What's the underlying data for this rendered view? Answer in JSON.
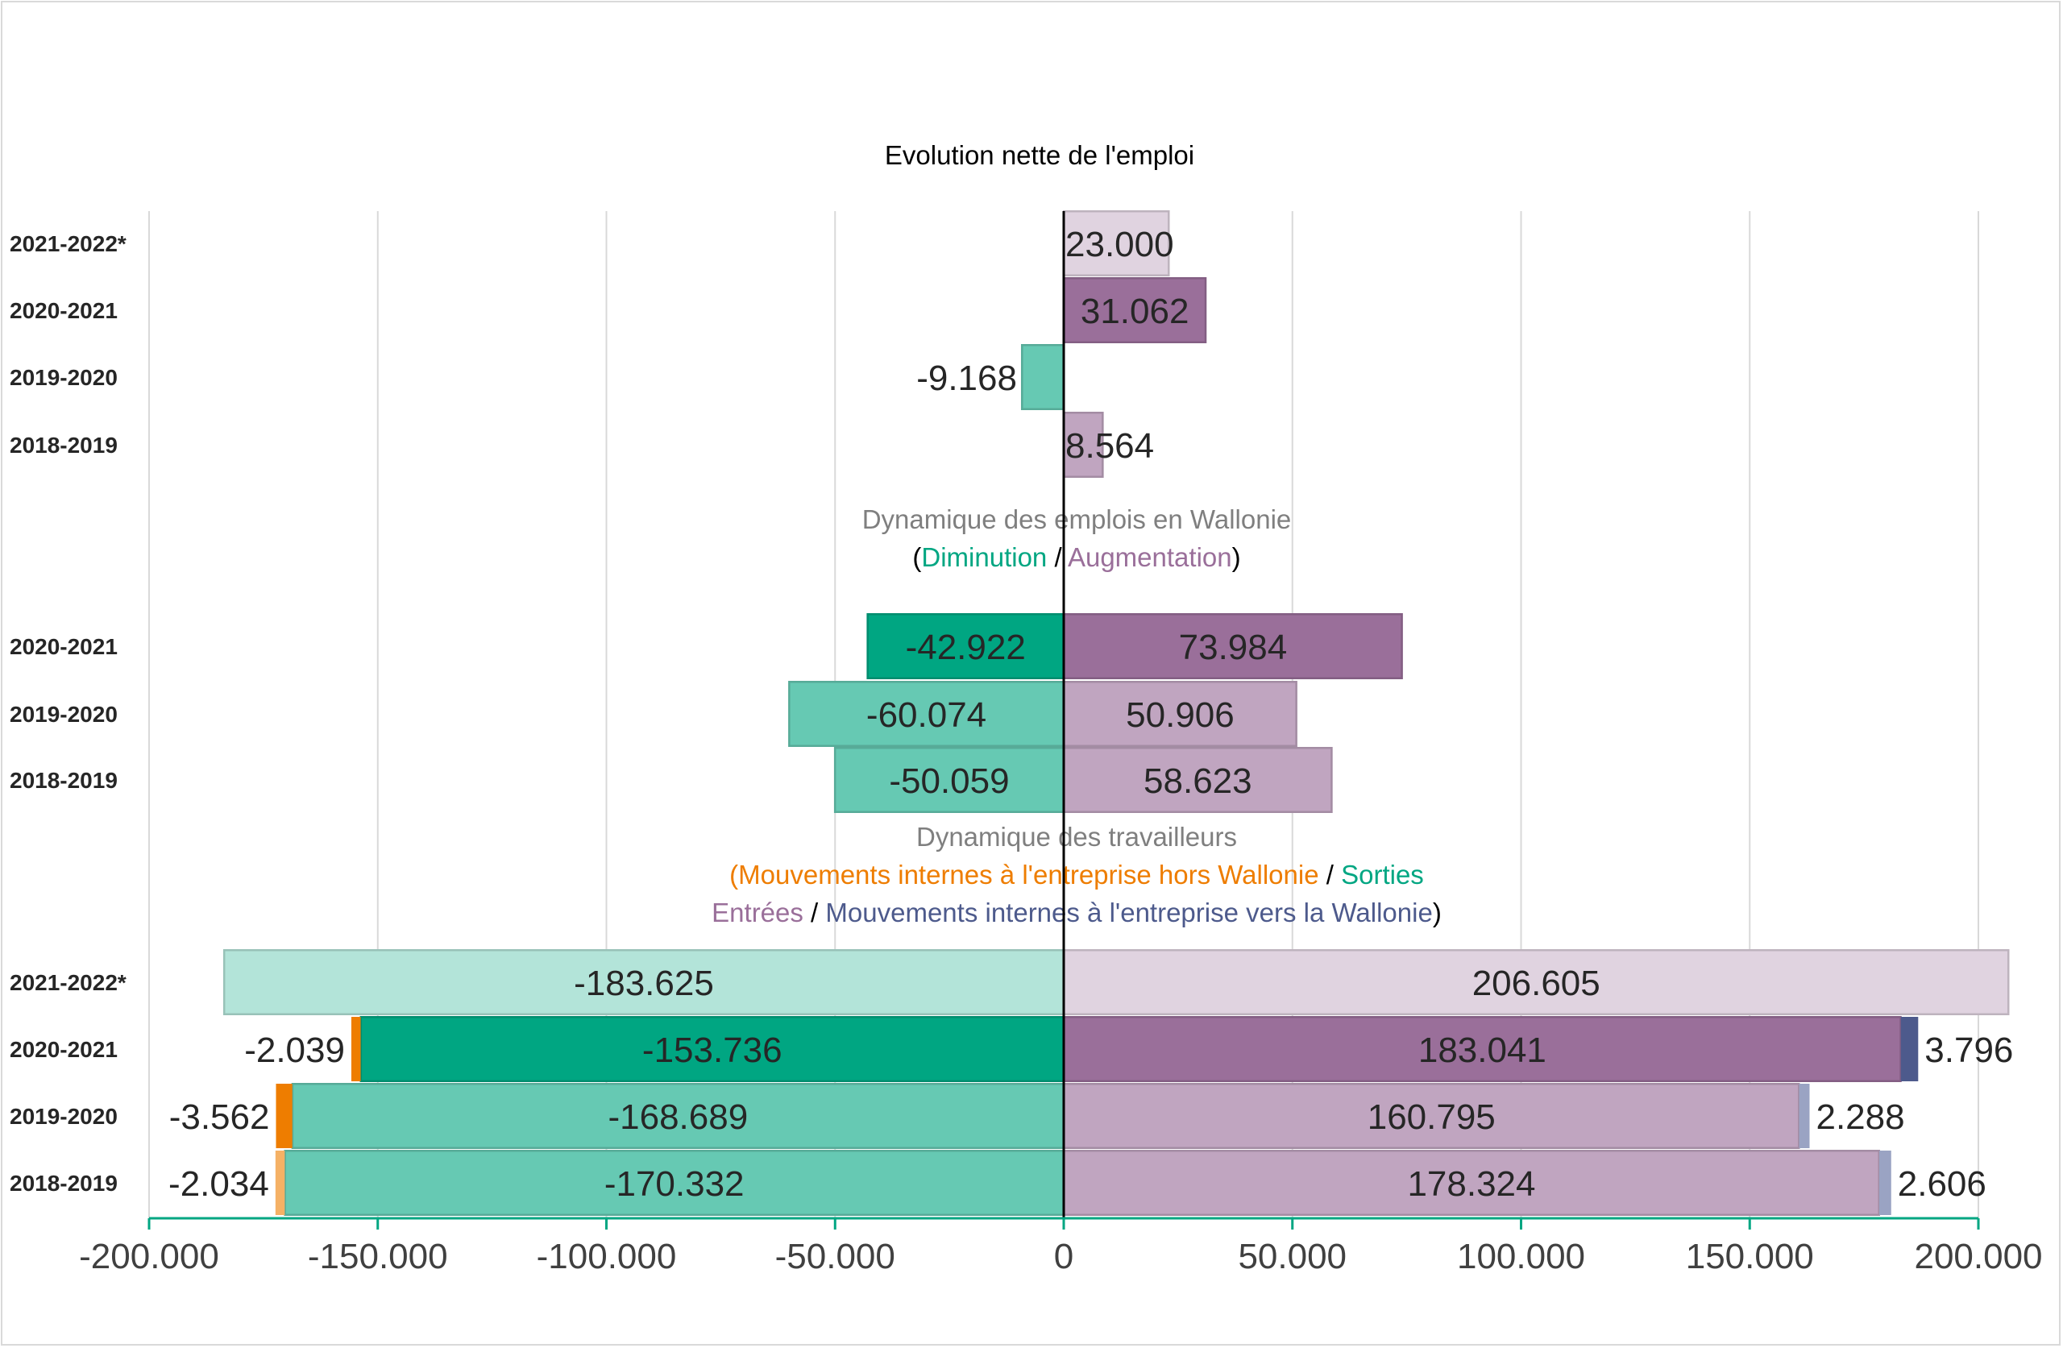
{
  "chart_data": {
    "type": "bar",
    "orientation": "horizontal",
    "title": "Evolution nette de l'emploi",
    "xlim": [
      -200000,
      200000
    ],
    "x_ticks": [
      "-200.000",
      "-150.000",
      "-100.000",
      "-50.000",
      "0",
      "50.000",
      "100.000",
      "150.000",
      "200.000"
    ],
    "grid": true,
    "colors": {
      "sorties": "#00a682",
      "sorties_light": "#66c9b3",
      "sorties_pale": "#b3e4d9",
      "entrees": "#9a6f9a",
      "entrees_light": "#c0a5c0",
      "entrees_pale": "#e0d3e0",
      "internes_hors": "#ee7d00",
      "internes_hors_light": "#f5b165",
      "internes_vers": "#4d5a8c",
      "internes_vers_light": "#9aa3c3",
      "caption_gray": "#7f7f7f",
      "axis": "#00a682"
    },
    "sections": [
      {
        "rows": [
          {
            "category": "2021-2022*",
            "bars": [
              {
                "from": 0,
                "to": 23000,
                "label": "23.000",
                "color": "entrees_pale"
              }
            ]
          },
          {
            "category": "2020-2021",
            "bars": [
              {
                "from": 0,
                "to": 31062,
                "label": "31.062",
                "color": "entrees"
              }
            ]
          },
          {
            "category": "2019-2020",
            "bars": [
              {
                "from": 0,
                "to": -9168,
                "label": "-9.168",
                "color": "sorties_light"
              }
            ]
          },
          {
            "category": "2018-2019",
            "bars": [
              {
                "from": 0,
                "to": 8564,
                "label": "8.564",
                "color": "entrees_light"
              }
            ]
          }
        ]
      },
      {
        "caption": [
          [
            {
              "text": "Dynamique des emplois en Wallonie",
              "color": "caption_gray"
            }
          ],
          [
            {
              "text": "(",
              "color": "black"
            },
            {
              "text": "Diminution",
              "color": "sorties"
            },
            {
              "text": " / ",
              "color": "black"
            },
            {
              "text": "Augmentation",
              "color": "entrees"
            },
            {
              "text": ")",
              "color": "black"
            }
          ]
        ],
        "rows": [
          {
            "category": "2020-2021",
            "bars": [
              {
                "from": 0,
                "to": -42922,
                "label": "-42.922",
                "color": "sorties"
              },
              {
                "from": 0,
                "to": 73984,
                "label": "73.984",
                "color": "entrees"
              }
            ]
          },
          {
            "category": "2019-2020",
            "bars": [
              {
                "from": 0,
                "to": -60074,
                "label": "-60.074",
                "color": "sorties_light"
              },
              {
                "from": 0,
                "to": 50906,
                "label": "50.906",
                "color": "entrees_light"
              }
            ]
          },
          {
            "category": "2018-2019",
            "bars": [
              {
                "from": 0,
                "to": -50059,
                "label": "-50.059",
                "color": "sorties_light"
              },
              {
                "from": 0,
                "to": 58623,
                "label": "58.623",
                "color": "entrees_light"
              }
            ]
          }
        ]
      },
      {
        "caption": [
          [
            {
              "text": "Dynamique des travailleurs",
              "color": "caption_gray"
            }
          ],
          [
            {
              "text": "(Mouvements internes à l'entreprise hors Wallonie",
              "color": "internes_hors"
            },
            {
              "text": " / ",
              "color": "black"
            },
            {
              "text": "Sorties",
              "color": "sorties"
            }
          ],
          [
            {
              "text": "Entrées",
              "color": "entrees"
            },
            {
              "text": " / ",
              "color": "black"
            },
            {
              "text": "Mouvements internes à l'entreprise vers la Wallonie",
              "color": "internes_vers"
            },
            {
              "text": ")",
              "color": "black"
            }
          ]
        ],
        "rows": [
          {
            "category": "2021-2022*",
            "bars": [
              {
                "from": 0,
                "to": -183625,
                "label": "-183.625",
                "color": "sorties_pale"
              },
              {
                "from": 0,
                "to": 206605,
                "label": "206.605",
                "color": "entrees_pale"
              }
            ]
          },
          {
            "category": "2020-2021",
            "bars": [
              {
                "from": 0,
                "to": -153736,
                "label": "-153.736",
                "color": "sorties"
              },
              {
                "from": -153736,
                "to": -155775,
                "label": "-2.039",
                "color": "internes_hors",
                "outside": true
              },
              {
                "from": 0,
                "to": 183041,
                "label": "183.041",
                "color": "entrees"
              },
              {
                "from": 183041,
                "to": 186837,
                "label": "3.796",
                "color": "internes_vers",
                "outside": true
              }
            ]
          },
          {
            "category": "2019-2020",
            "bars": [
              {
                "from": 0,
                "to": -168689,
                "label": "-168.689",
                "color": "sorties_light"
              },
              {
                "from": -168689,
                "to": -172251,
                "label": "-3.562",
                "color": "internes_hors",
                "outside": true
              },
              {
                "from": 0,
                "to": 160795,
                "label": "160.795",
                "color": "entrees_light"
              },
              {
                "from": 160795,
                "to": 163083,
                "label": "2.288",
                "color": "internes_vers_light",
                "outside": true
              }
            ]
          },
          {
            "category": "2018-2019",
            "bars": [
              {
                "from": 0,
                "to": -170332,
                "label": "-170.332",
                "color": "sorties_light"
              },
              {
                "from": -170332,
                "to": -172366,
                "label": "-2.034",
                "color": "internes_hors_light",
                "outside": true
              },
              {
                "from": 0,
                "to": 178324,
                "label": "178.324",
                "color": "entrees_light"
              },
              {
                "from": 178324,
                "to": 180930,
                "label": "2.606",
                "color": "internes_vers_light",
                "outside": true
              }
            ]
          }
        ]
      }
    ]
  }
}
